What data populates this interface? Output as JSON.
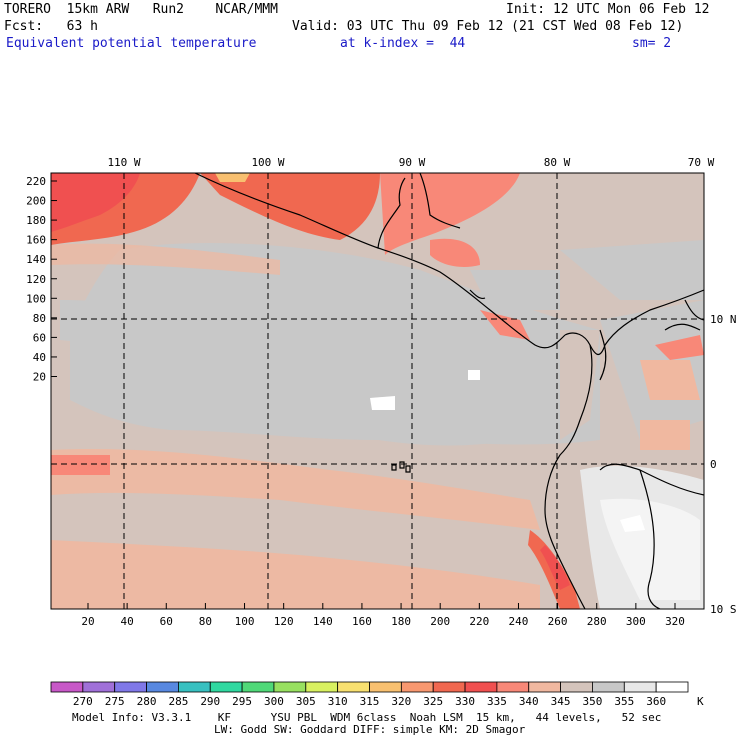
{
  "header": {
    "line1_left": "TORERO  15km ARW   Run2    NCAR/MMM",
    "line1_right": "Init: 12 UTC Mon 06 Feb 12",
    "line2_left": "Fcst:   63 h",
    "line2_right": "Valid: 03 UTC Thu 09 Feb 12 (21 CST Wed 08 Feb 12)",
    "line3_field": "Equivalent potential temperature",
    "line3_level": "at k-index =  44",
    "line3_smooth": "sm= 2"
  },
  "map": {
    "lon_labels": [
      "110 W",
      "100 W",
      "90 W",
      "80 W",
      "70 W"
    ],
    "lat_labels": [
      "10 N",
      "0",
      "10 S"
    ],
    "y_ticks": [
      "220",
      "200",
      "180",
      "160",
      "140",
      "120",
      "100",
      "80",
      "60",
      "40",
      "20"
    ],
    "x_ticks": [
      "20",
      "40",
      "60",
      "80",
      "100",
      "120",
      "140",
      "160",
      "180",
      "200",
      "220",
      "240",
      "260",
      "280",
      "300",
      "320"
    ]
  },
  "colorbar": {
    "unit": "K",
    "labels": [
      "270",
      "275",
      "280",
      "285",
      "290",
      "295",
      "300",
      "305",
      "310",
      "315",
      "320",
      "325",
      "330",
      "335",
      "340",
      "345",
      "350",
      "355",
      "360"
    ],
    "colors": [
      "#c858c8",
      "#a070d8",
      "#8078e8",
      "#5888e0",
      "#38c0c0",
      "#30d8a0",
      "#50d878",
      "#98e060",
      "#d8f060",
      "#f8e070",
      "#f8c070",
      "#f89870",
      "#f06850",
      "#f05050",
      "#f88878",
      "#f0b8a0",
      "#d4c4bc",
      "#c8c8c8",
      "#e8e8e8",
      "#ffffff"
    ]
  },
  "footer": {
    "line1": "Model Info: V3.3.1    KF      YSU PBL  WDM 6class  Noah LSM  15 km,   44 levels,   52 sec",
    "line2": "LW: Godd SW: Goddard DIFF: simple KM: 2D Smagor"
  }
}
